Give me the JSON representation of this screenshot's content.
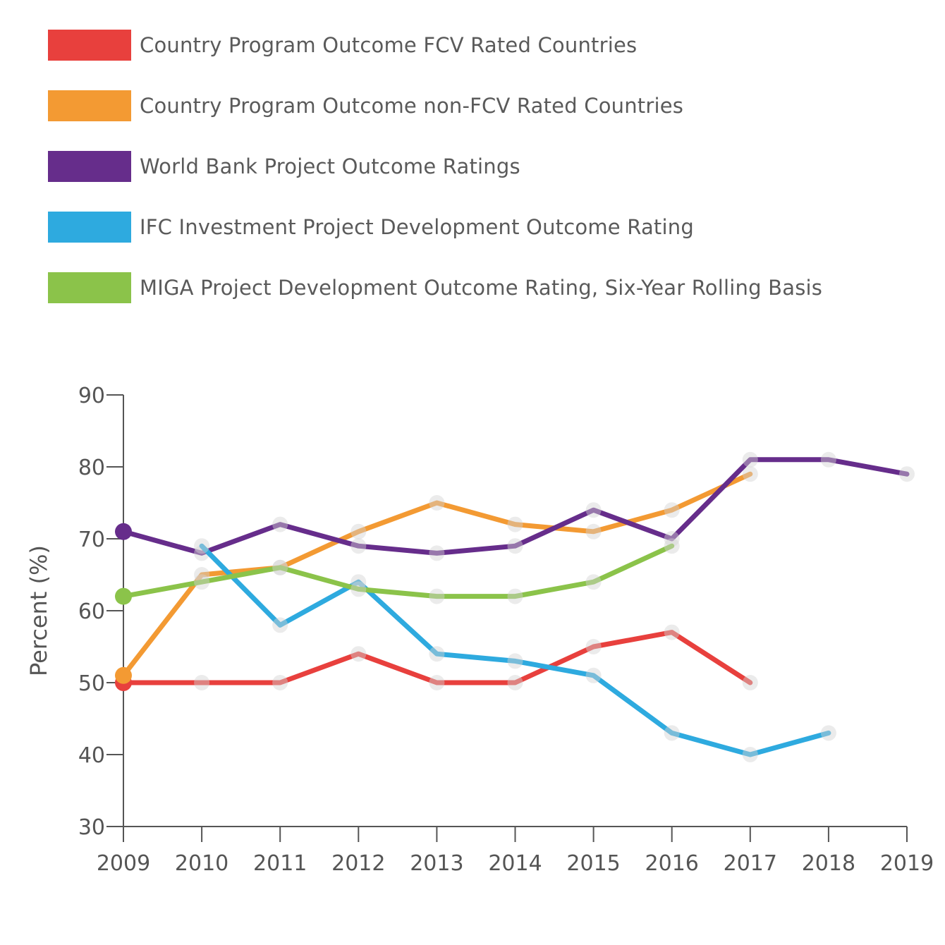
{
  "chart_data": {
    "type": "line",
    "title": "",
    "xlabel": "",
    "ylabel": "Percent (%)",
    "x": [
      "2009",
      "2010",
      "2011",
      "2012",
      "2013",
      "2014",
      "2015",
      "2016",
      "2017",
      "2018",
      "2019"
    ],
    "y_ticks": [
      "30",
      "40",
      "50",
      "60",
      "70",
      "80",
      "90"
    ],
    "ylim": [
      30,
      90
    ],
    "grid": false,
    "legend_position": "top",
    "series": [
      {
        "name": "Country Program Outcome FCV Rated Countries",
        "color": "#e8403d",
        "values": [
          50,
          50,
          50,
          54,
          50,
          50,
          55,
          57,
          50,
          null,
          null
        ]
      },
      {
        "name": "Country Program Outcome non-FCV Rated Countries",
        "color": "#f39a33",
        "values": [
          51,
          65,
          66,
          71,
          75,
          72,
          71,
          74,
          79,
          null,
          null
        ]
      },
      {
        "name": "World Bank Project Outcome Ratings",
        "color": "#662d8b",
        "values": [
          71,
          68,
          72,
          69,
          68,
          69,
          74,
          70,
          81,
          81,
          79
        ]
      },
      {
        "name": "IFC Investment Project Development Outcome Rating",
        "color": "#2eaadf",
        "values": [
          null,
          69,
          58,
          64,
          54,
          53,
          51,
          43,
          40,
          43,
          null
        ]
      },
      {
        "name": "MIGA Project Development Outcome Rating, Six-Year Rolling Basis",
        "color": "#8bc34a",
        "values": [
          62,
          64,
          66,
          63,
          62,
          62,
          64,
          69,
          null,
          null,
          null
        ]
      }
    ]
  }
}
